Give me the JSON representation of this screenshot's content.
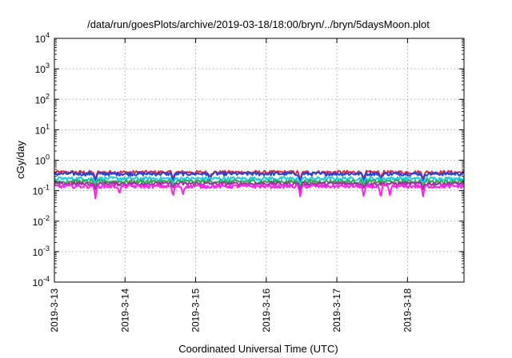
{
  "chart_data": {
    "type": "line",
    "title": "/data/run/goesPlots/archive/2019-03-18/18:00/bryn/../bryn/5daysMoon.plot",
    "xlabel": "Coordinated Universal Time (UTC)",
    "ylabel": "cGy/day",
    "yscale": "log",
    "ylim": [
      0.0001,
      10000
    ],
    "xlim": [
      0,
      5.8
    ],
    "grid": true,
    "x_ticks": [
      {
        "value": 0,
        "label": "2019-3-13"
      },
      {
        "value": 1,
        "label": "2019-3-14"
      },
      {
        "value": 2,
        "label": "2019-3-15"
      },
      {
        "value": 3,
        "label": "2019-3-16"
      },
      {
        "value": 4,
        "label": "2019-3-17"
      },
      {
        "value": 5,
        "label": "2019-3-18"
      }
    ],
    "y_ticks": [
      {
        "value": 0.0001,
        "base": "10",
        "exp": "-4"
      },
      {
        "value": 0.001,
        "base": "10",
        "exp": "-3"
      },
      {
        "value": 0.01,
        "base": "10",
        "exp": "-2"
      },
      {
        "value": 0.1,
        "base": "10",
        "exp": "-1"
      },
      {
        "value": 1,
        "base": "10",
        "exp": "0"
      },
      {
        "value": 10,
        "base": "10",
        "exp": "1"
      },
      {
        "value": 100,
        "base": "10",
        "exp": "2"
      },
      {
        "value": 1000,
        "base": "10",
        "exp": "3"
      },
      {
        "value": 10000,
        "base": "10",
        "exp": "4"
      }
    ],
    "series": [
      {
        "color": "#e8283c",
        "base": 0.4,
        "dips": [
          [
            0.58,
            0.22
          ],
          [
            1.68,
            0.24
          ],
          [
            2.2,
            0.26
          ],
          [
            3.48,
            0.2
          ],
          [
            4.38,
            0.24
          ],
          [
            4.62,
            0.26
          ],
          [
            5.22,
            0.22
          ]
        ]
      },
      {
        "color": "#2244dd",
        "base": 0.36,
        "dips": [
          [
            0.58,
            0.16
          ],
          [
            1.68,
            0.18
          ],
          [
            2.2,
            0.2
          ],
          [
            3.48,
            0.15
          ],
          [
            4.38,
            0.18
          ],
          [
            4.62,
            0.2
          ],
          [
            5.22,
            0.16
          ]
        ]
      },
      {
        "color": "#22ccdd",
        "base": 0.25,
        "dips": [
          [
            0.58,
            0.16
          ],
          [
            1.68,
            0.17
          ],
          [
            3.48,
            0.15
          ],
          [
            4.38,
            0.17
          ],
          [
            5.22,
            0.16
          ]
        ]
      },
      {
        "color": "#33aa55",
        "base": 0.2,
        "dips": [
          [
            0.58,
            0.13
          ],
          [
            1.68,
            0.14
          ],
          [
            3.48,
            0.12
          ],
          [
            4.38,
            0.14
          ],
          [
            5.22,
            0.13
          ]
        ]
      },
      {
        "color": "#993399",
        "base": 0.17,
        "dips": [
          [
            0.58,
            0.11
          ],
          [
            1.68,
            0.12
          ],
          [
            3.48,
            0.1
          ],
          [
            4.38,
            0.12
          ],
          [
            5.22,
            0.11
          ]
        ]
      },
      {
        "color": "#ff22ee",
        "base": 0.14,
        "dips": [
          [
            0.58,
            0.055
          ],
          [
            0.92,
            0.075
          ],
          [
            1.68,
            0.06
          ],
          [
            1.82,
            0.07
          ],
          [
            3.48,
            0.065
          ],
          [
            4.38,
            0.06
          ],
          [
            4.62,
            0.05
          ],
          [
            4.75,
            0.07
          ],
          [
            5.22,
            0.065
          ]
        ]
      }
    ]
  }
}
